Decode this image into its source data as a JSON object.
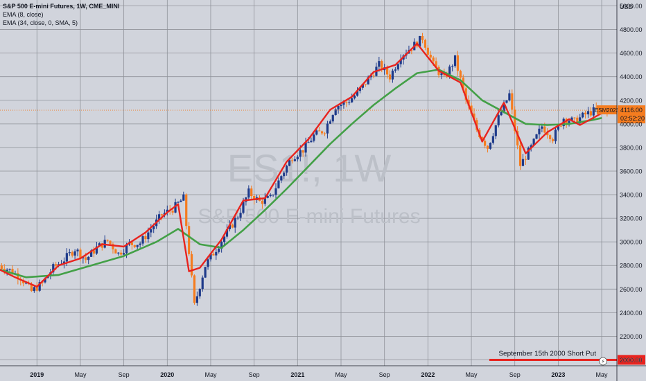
{
  "legend": {
    "symbol": "S&P 500 E-mini Futures, 1W, CME_MINI",
    "ema_fast": "EMA (8, close)",
    "ema_slow": "EMA (34, close, 0, SMA, 5)"
  },
  "watermark": {
    "ticker": "ES1!, 1W",
    "name": "S&P 500 E-mini Futures"
  },
  "currency": "USD",
  "last_price": {
    "symbol": "ESM2023",
    "price": "4116.00",
    "countdown": "02:52:20"
  },
  "annotation": {
    "text": "September 15th 2000 Short Put",
    "price_label": "2000.00"
  },
  "colors": {
    "background": "#d1d4dc",
    "grid": "#8f9299",
    "candle_up": "#1e3a8a",
    "candle_down": "#f57c1f",
    "ema_fast": "#e8231e",
    "ema_slow": "#43a047",
    "annotation_line": "#e8231e",
    "price_tag": "#f57c1f"
  },
  "chart_data": {
    "type": "candlestick",
    "title": "S&P 500 E-mini Futures, 1W, CME_MINI",
    "y_axis": {
      "unit": "USD",
      "range": [
        1950,
        5050
      ],
      "ticks": [
        2000,
        2200,
        2400,
        2600,
        2800,
        3000,
        3200,
        3400,
        3600,
        3800,
        4000,
        4200,
        4400,
        4600,
        4800,
        5000
      ],
      "tick_labels": [
        "2000.00",
        "2200.00",
        "2400.00",
        "2600.00",
        "2800.00",
        "3000.00",
        "3200.00",
        "3400.00",
        "3600.00",
        "3800.00",
        "4000.00",
        "4200.00",
        "4400.00",
        "4600.00",
        "4800.00",
        "5000.00"
      ]
    },
    "x_axis": {
      "range": [
        "2018-09",
        "2023-06"
      ],
      "ticks": [
        {
          "label": "2019",
          "date": "2019-01",
          "bold": true
        },
        {
          "label": "May",
          "date": "2019-05",
          "bold": false
        },
        {
          "label": "Sep",
          "date": "2019-09",
          "bold": false
        },
        {
          "label": "2020",
          "date": "2020-01",
          "bold": true
        },
        {
          "label": "May",
          "date": "2020-05",
          "bold": false
        },
        {
          "label": "Sep",
          "date": "2020-09",
          "bold": false
        },
        {
          "label": "2021",
          "date": "2021-01",
          "bold": true
        },
        {
          "label": "May",
          "date": "2021-05",
          "bold": false
        },
        {
          "label": "Sep",
          "date": "2021-09",
          "bold": false
        },
        {
          "label": "2022",
          "date": "2022-01",
          "bold": true
        },
        {
          "label": "May",
          "date": "2022-05",
          "bold": false
        },
        {
          "label": "Sep",
          "date": "2022-09",
          "bold": false
        },
        {
          "label": "2023",
          "date": "2023-01",
          "bold": true
        },
        {
          "label": "May",
          "date": "2023-05",
          "bold": false
        }
      ]
    },
    "close_series": [
      {
        "date": "2018-09",
        "close": 2800
      },
      {
        "date": "2018-10",
        "close": 2760
      },
      {
        "date": "2018-11",
        "close": 2700
      },
      {
        "date": "2018-12",
        "close": 2580
      },
      {
        "date": "2019-01",
        "close": 2650
      },
      {
        "date": "2019-02",
        "close": 2780
      },
      {
        "date": "2019-03",
        "close": 2850
      },
      {
        "date": "2019-04",
        "close": 2940
      },
      {
        "date": "2019-05",
        "close": 2850
      },
      {
        "date": "2019-06",
        "close": 2950
      },
      {
        "date": "2019-07",
        "close": 3010
      },
      {
        "date": "2019-08",
        "close": 2900
      },
      {
        "date": "2019-09",
        "close": 2980
      },
      {
        "date": "2019-10",
        "close": 2990
      },
      {
        "date": "2019-11",
        "close": 3110
      },
      {
        "date": "2019-12",
        "close": 3230
      },
      {
        "date": "2020-01",
        "close": 3280
      },
      {
        "date": "2020-02",
        "close": 3370
      },
      {
        "date": "2020-03",
        "close": 2460
      },
      {
        "date": "2020-04",
        "close": 2800
      },
      {
        "date": "2020-05",
        "close": 2940
      },
      {
        "date": "2020-06",
        "close": 3080
      },
      {
        "date": "2020-07",
        "close": 3220
      },
      {
        "date": "2020-08",
        "close": 3420
      },
      {
        "date": "2020-09",
        "close": 3340
      },
      {
        "date": "2020-10",
        "close": 3370
      },
      {
        "date": "2020-11",
        "close": 3560
      },
      {
        "date": "2020-12",
        "close": 3720
      },
      {
        "date": "2021-01",
        "close": 3780
      },
      {
        "date": "2021-02",
        "close": 3900
      },
      {
        "date": "2021-03",
        "close": 3950
      },
      {
        "date": "2021-04",
        "close": 4150
      },
      {
        "date": "2021-05",
        "close": 4180
      },
      {
        "date": "2021-06",
        "close": 4260
      },
      {
        "date": "2021-07",
        "close": 4380
      },
      {
        "date": "2021-08",
        "close": 4500
      },
      {
        "date": "2021-09",
        "close": 4400
      },
      {
        "date": "2021-10",
        "close": 4580
      },
      {
        "date": "2021-11",
        "close": 4650
      },
      {
        "date": "2021-12",
        "close": 4730
      },
      {
        "date": "2022-01",
        "close": 4500
      },
      {
        "date": "2022-02",
        "close": 4380
      },
      {
        "date": "2022-03",
        "close": 4550
      },
      {
        "date": "2022-04",
        "close": 4200
      },
      {
        "date": "2022-05",
        "close": 3950
      },
      {
        "date": "2022-06",
        "close": 3800
      },
      {
        "date": "2022-07",
        "close": 4050
      },
      {
        "date": "2022-08",
        "close": 4250
      },
      {
        "date": "2022-09",
        "close": 3650
      },
      {
        "date": "2022-10",
        "close": 3800
      },
      {
        "date": "2022-11",
        "close": 3980
      },
      {
        "date": "2022-12",
        "close": 3880
      },
      {
        "date": "2023-01",
        "close": 4050
      },
      {
        "date": "2023-02",
        "close": 4020
      },
      {
        "date": "2023-03",
        "close": 4080
      },
      {
        "date": "2023-04",
        "close": 4120
      },
      {
        "date": "2023-05",
        "close": 4116
      }
    ],
    "ema_fast_series": [
      {
        "date": "2018-09",
        "value": 2790
      },
      {
        "date": "2018-11",
        "value": 2700
      },
      {
        "date": "2019-01",
        "value": 2620
      },
      {
        "date": "2019-03",
        "value": 2800
      },
      {
        "date": "2019-05",
        "value": 2860
      },
      {
        "date": "2019-07",
        "value": 2980
      },
      {
        "date": "2019-09",
        "value": 2960
      },
      {
        "date": "2019-11",
        "value": 3080
      },
      {
        "date": "2020-01",
        "value": 3250
      },
      {
        "date": "2020-02",
        "value": 3320
      },
      {
        "date": "2020-03",
        "value": 2750
      },
      {
        "date": "2020-04",
        "value": 2780
      },
      {
        "date": "2020-06",
        "value": 3020
      },
      {
        "date": "2020-08",
        "value": 3350
      },
      {
        "date": "2020-10",
        "value": 3370
      },
      {
        "date": "2020-12",
        "value": 3680
      },
      {
        "date": "2021-02",
        "value": 3870
      },
      {
        "date": "2021-04",
        "value": 4120
      },
      {
        "date": "2021-06",
        "value": 4230
      },
      {
        "date": "2021-08",
        "value": 4440
      },
      {
        "date": "2021-10",
        "value": 4500
      },
      {
        "date": "2021-12",
        "value": 4680
      },
      {
        "date": "2022-02",
        "value": 4450
      },
      {
        "date": "2022-04",
        "value": 4350
      },
      {
        "date": "2022-06",
        "value": 3850
      },
      {
        "date": "2022-08",
        "value": 4180
      },
      {
        "date": "2022-10",
        "value": 3750
      },
      {
        "date": "2022-12",
        "value": 3930
      },
      {
        "date": "2023-02",
        "value": 4040
      },
      {
        "date": "2023-03",
        "value": 3990
      },
      {
        "date": "2023-05",
        "value": 4090
      }
    ],
    "ema_slow_series": [
      {
        "date": "2018-09",
        "value": 2780
      },
      {
        "date": "2018-12",
        "value": 2700
      },
      {
        "date": "2019-03",
        "value": 2720
      },
      {
        "date": "2019-06",
        "value": 2800
      },
      {
        "date": "2019-09",
        "value": 2880
      },
      {
        "date": "2019-12",
        "value": 3000
      },
      {
        "date": "2020-02",
        "value": 3110
      },
      {
        "date": "2020-04",
        "value": 2980
      },
      {
        "date": "2020-06",
        "value": 2950
      },
      {
        "date": "2020-08",
        "value": 3100
      },
      {
        "date": "2020-10",
        "value": 3270
      },
      {
        "date": "2020-12",
        "value": 3450
      },
      {
        "date": "2021-02",
        "value": 3640
      },
      {
        "date": "2021-04",
        "value": 3830
      },
      {
        "date": "2021-06",
        "value": 4000
      },
      {
        "date": "2021-08",
        "value": 4160
      },
      {
        "date": "2021-10",
        "value": 4300
      },
      {
        "date": "2021-12",
        "value": 4430
      },
      {
        "date": "2022-02",
        "value": 4460
      },
      {
        "date": "2022-04",
        "value": 4370
      },
      {
        "date": "2022-06",
        "value": 4200
      },
      {
        "date": "2022-08",
        "value": 4100
      },
      {
        "date": "2022-10",
        "value": 4000
      },
      {
        "date": "2022-12",
        "value": 3990
      },
      {
        "date": "2023-02",
        "value": 4000
      },
      {
        "date": "2023-04",
        "value": 4030
      },
      {
        "date": "2023-05",
        "value": 4050
      }
    ],
    "reference_lines": [
      {
        "label": "September 15th 2000 Short Put",
        "value": 2000
      },
      {
        "label": "ESM2023",
        "value": 4116
      }
    ]
  }
}
